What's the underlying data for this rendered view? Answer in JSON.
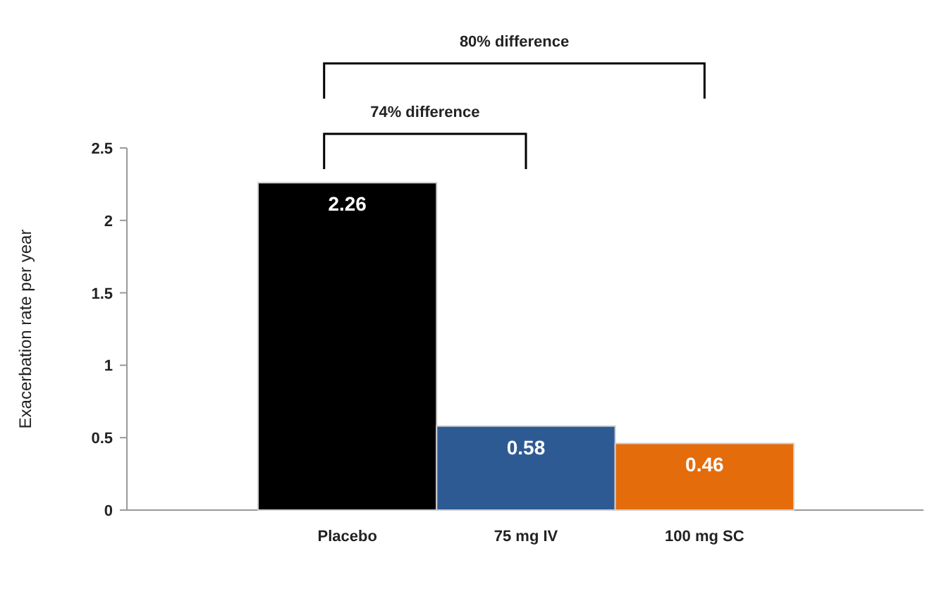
{
  "chart_data": {
    "type": "bar",
    "ylabel": "Exacerbation rate per year",
    "categories": [
      "Placebo",
      "75 mg IV",
      "100 mg SC"
    ],
    "values": [
      2.26,
      0.58,
      0.46
    ],
    "colors": [
      "#000000",
      "#2e5a94",
      "#e46c0a"
    ],
    "ylim": [
      0,
      2.5
    ],
    "yticks": [
      0,
      0.5,
      1,
      1.5,
      2,
      2.5
    ],
    "data_labels": true,
    "annotations": [
      "80% difference",
      "74% difference"
    ]
  }
}
